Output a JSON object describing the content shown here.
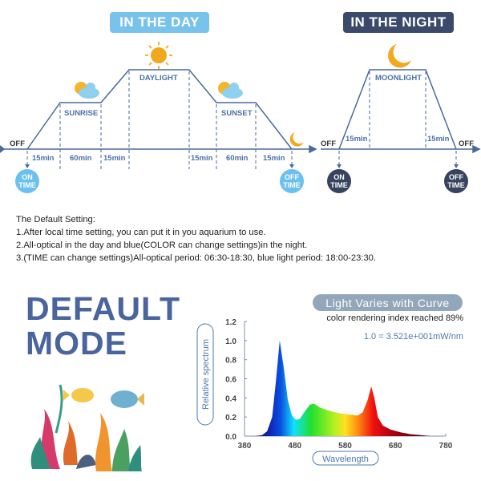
{
  "day": {
    "title": "IN THE DAY",
    "color": "#6cc0ee",
    "labels": {
      "off": "OFF",
      "sunrise": "SUNRISE",
      "daylight": "DAYLIGHT",
      "sunset": "SUNSET"
    },
    "durations": [
      "15min",
      "60min",
      "15min",
      "15min",
      "60min",
      "15min"
    ],
    "on_time": [
      "ON",
      "TIME"
    ],
    "off_time": [
      "OFF",
      "TIME"
    ]
  },
  "night": {
    "title": "IN THE NIGHT",
    "color": "#3a4868",
    "labels": {
      "off_start": "OFF",
      "moonlight": "MOONLIGHT",
      "off_end": "OFF"
    },
    "durations": [
      "15min",
      "15min"
    ],
    "on_time": [
      "ON",
      "TIME"
    ],
    "off_time": [
      "OFF",
      "TIME"
    ]
  },
  "notes": {
    "heading": "The Default Setting:",
    "lines": [
      "1.After local time setting, you can put it in you aquarium to use.",
      "2.All-optical in the day and blue(COLOR can change settings)in the night.",
      "3.(TIME can change settings)All-optical period: 06:30-18:30, blue light period: 18:00-23:30."
    ]
  },
  "mode": {
    "line1": "DEFAULT",
    "line2": "MODE"
  },
  "spectrum_panel": {
    "badge": "Light Varies with Curve",
    "cri": "color rendering index reached 89%",
    "scale": "1.0 = 3.521e+001mW/nm"
  },
  "chart_data": {
    "type": "area",
    "xlabel": "Wavelength",
    "ylabel": "Relative spectrum",
    "xlim": [
      380,
      780
    ],
    "ylim": [
      0,
      1.2
    ],
    "xticks": [
      "380",
      "480",
      "580",
      "680",
      "780"
    ],
    "yticks": [
      "0.0",
      "0.2",
      "0.4",
      "0.6",
      "0.8",
      "1.0",
      "1.2"
    ],
    "x": [
      400,
      415,
      425,
      435,
      442,
      450,
      458,
      466,
      474,
      482,
      490,
      500,
      510,
      518,
      530,
      545,
      560,
      575,
      590,
      605,
      615,
      625,
      632,
      638,
      645,
      655,
      670,
      690,
      710,
      730,
      750
    ],
    "y": [
      0.0,
      0.01,
      0.05,
      0.2,
      0.55,
      1.0,
      0.72,
      0.38,
      0.22,
      0.17,
      0.18,
      0.26,
      0.33,
      0.34,
      0.3,
      0.27,
      0.25,
      0.235,
      0.225,
      0.215,
      0.25,
      0.38,
      0.52,
      0.4,
      0.2,
      0.11,
      0.07,
      0.04,
      0.02,
      0.01,
      0.0
    ]
  }
}
